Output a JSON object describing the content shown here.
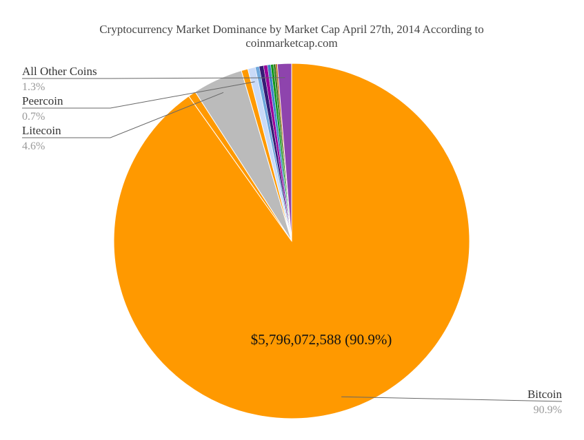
{
  "chart_data": {
    "type": "pie",
    "title": "Cryptocurrency Market Dominance by Market Cap April 27th, 2014 According to coinmarketcap.com",
    "title_lines": [
      "Cryptocurrency Market Dominance by Market Cap April 27th, 2014 According to",
      "coinmarketcap.com"
    ],
    "slices": [
      {
        "label": "Bitcoin",
        "value": 90.9,
        "display": "90.9%",
        "color": "#FF9900"
      },
      {
        "label": "",
        "value": 0.7,
        "color": "#FF9900"
      },
      {
        "label": "Litecoin",
        "value": 4.6,
        "display": "4.6%",
        "color": "#BBBBBB"
      },
      {
        "label": "",
        "value": 0.6,
        "color": "#FF9900"
      },
      {
        "label": "Peercoin",
        "value": 0.7,
        "display": "0.7%",
        "color": "#C9DAF8"
      },
      {
        "label": "",
        "value": 0.35,
        "color": "#6FA8DC"
      },
      {
        "label": "",
        "value": 0.4,
        "color": "#351C75"
      },
      {
        "label": "",
        "value": 0.35,
        "color": "#990099"
      },
      {
        "label": "",
        "value": 0.3,
        "color": "#3D85C6"
      },
      {
        "label": "",
        "value": 0.25,
        "color": "#109618"
      },
      {
        "label": "",
        "value": 0.2,
        "color": "#38761D"
      },
      {
        "label": "",
        "value": 0.15,
        "color": "#B45F06"
      },
      {
        "label": "All Other Coins",
        "value": 1.3,
        "display": "1.3%",
        "color": "#8E44AD"
      }
    ],
    "inside_label": "$5,796,072,588 (90.9%)",
    "legend": "none"
  }
}
